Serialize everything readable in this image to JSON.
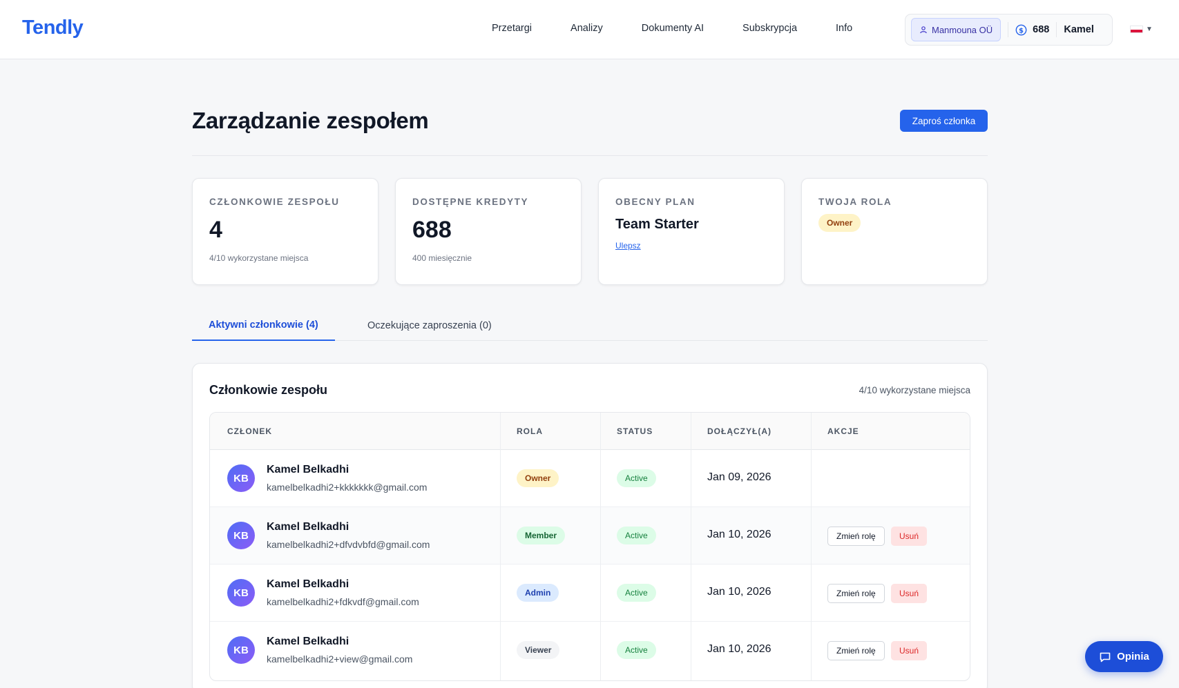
{
  "brand": {
    "logo": "Tendly",
    "accent": "#2563eb"
  },
  "nav": [
    "Przetargi",
    "Analizy",
    "Dokumenty AI",
    "Subskrypcja",
    "Info"
  ],
  "account": {
    "organization": "Manmouna OÜ",
    "credits": "688",
    "user": "Kamel",
    "language_flag": "pl-flag-icon"
  },
  "page": {
    "title": "Zarządzanie zespołem",
    "invite_button": "Zaproś członka"
  },
  "stats": {
    "members": {
      "label": "Członkowie zespołu",
      "value": "4",
      "sub": "4/10 wykorzystane miejsca"
    },
    "credits": {
      "label": "Dostępne kredyty",
      "value": "688",
      "sub": "400 miesięcznie"
    },
    "plan": {
      "label": "Obecny plan",
      "value": "Team Starter",
      "link": "Ulepsz"
    },
    "role": {
      "label": "Twoja rola",
      "value": "Owner"
    }
  },
  "tabs": {
    "active": "Aktywni członkowie (4)",
    "pending": "Oczekujące zaproszenia (0)"
  },
  "members_panel": {
    "title": "Członkowie zespołu",
    "seats": "4/10 wykorzystane miejsca",
    "columns": [
      "Członek",
      "Rola",
      "Status",
      "Dołączył(a)",
      "Akcje"
    ],
    "rows": [
      {
        "initials": "KB",
        "name": "Kamel Belkadhi",
        "email": "kamelbelkadhi2+kkkkkkk@gmail.com",
        "role": "Owner",
        "status": "Active",
        "joined": "Jan 09, 2026",
        "actions": []
      },
      {
        "initials": "KB",
        "name": "Kamel Belkadhi",
        "email": "kamelbelkadhi2+dfvdvbfd@gmail.com",
        "role": "Member",
        "status": "Active",
        "joined": "Jan 10, 2026",
        "actions": [
          "Zmień rolę",
          "Usuń"
        ]
      },
      {
        "initials": "KB",
        "name": "Kamel Belkadhi",
        "email": "kamelbelkadhi2+fdkvdf@gmail.com",
        "role": "Admin",
        "status": "Active",
        "joined": "Jan 10, 2026",
        "actions": [
          "Zmień rolę",
          "Usuń"
        ]
      },
      {
        "initials": "KB",
        "name": "Kamel Belkadhi",
        "email": "kamelbelkadhi2+view@gmail.com",
        "role": "Viewer",
        "status": "Active",
        "joined": "Jan 10, 2026",
        "actions": [
          "Zmień rolę",
          "Usuń"
        ]
      }
    ]
  },
  "feedback_button": "Opinia"
}
